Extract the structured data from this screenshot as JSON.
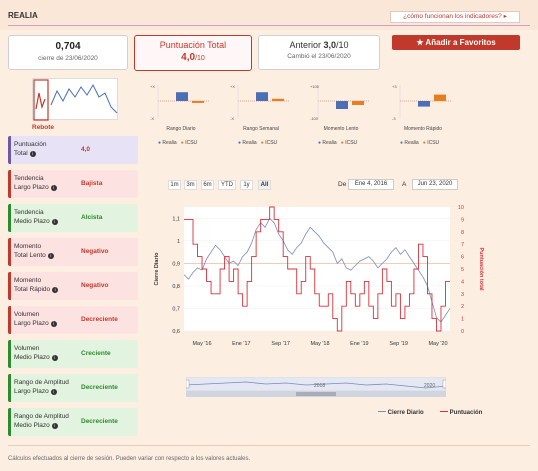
{
  "header": {
    "title": "REALIA",
    "help_link": "¿cómo funcionan los indicadores?"
  },
  "summary": {
    "close_value": "0,704",
    "close_date": "cierre de 23/06/2020",
    "score_label": "Puntuación Total",
    "score_value": "4,0",
    "score_max": "/10",
    "prev_label": "Anterior",
    "prev_value": "3,0",
    "prev_max": "/10",
    "prev_changed": "Cambió el 23/06/2020",
    "favorites_button": "Añadir a Favoritos"
  },
  "rebote_label": "Rebote",
  "mini_charts": [
    {
      "label": "Rango Diario",
      "top": "+X",
      "bottom": "-X",
      "realia": 0.55,
      "icsu": -0.12
    },
    {
      "label": "Rango Semanal",
      "top": "+X",
      "bottom": "-X",
      "realia": 0.55,
      "icsu": 0.14
    },
    {
      "label": "Momento Lento",
      "top": "+100",
      "bottom": "-100",
      "realia": -0.5,
      "icsu": -0.25
    },
    {
      "label": "Momento Rápido",
      "top": "+3",
      "bottom": "-3",
      "realia": -0.35,
      "icsu": 0.4
    }
  ],
  "mini_legend": {
    "realia": "Realia",
    "icsu": "ICSU"
  },
  "indicators": [
    {
      "name_line1": "Puntuación",
      "name_line2": "Total",
      "value": "4,0",
      "kind": "neu"
    },
    {
      "name_line1": "Tendencia",
      "name_line2": "Largo Plazo",
      "value": "Bajista",
      "kind": "neg"
    },
    {
      "name_line1": "Tendencia",
      "name_line2": "Medio Plazo",
      "value": "Alcista",
      "kind": "pos"
    },
    {
      "name_line1": "Momento",
      "name_line2": "Total Lento",
      "value": "Negativo",
      "kind": "neg"
    },
    {
      "name_line1": "Momento",
      "name_line2": "Total Rápido",
      "value": "Negativo",
      "kind": "neg"
    },
    {
      "name_line1": "Volumen",
      "name_line2": "Largo Plazo",
      "value": "Decreciente",
      "kind": "neg"
    },
    {
      "name_line1": "Volumen",
      "name_line2": "Medio Plazo",
      "value": "Creciente",
      "kind": "pos"
    },
    {
      "name_line1": "Rango de Amplitud",
      "name_line2": "Largo Plazo",
      "value": "Decreciente",
      "kind": "pos"
    },
    {
      "name_line1": "Rango de Amplitud",
      "name_line2": "Medio Plazo",
      "value": "Decreciente",
      "kind": "pos"
    }
  ],
  "range_buttons": [
    "1m",
    "3m",
    "6m",
    "YTD",
    "1y",
    "All"
  ],
  "date_range": {
    "from_label": "De",
    "from": "Ene 4, 2016",
    "to_label": "A",
    "to": "Jun 23, 2020"
  },
  "chart_data": {
    "type": "line",
    "x_ticks": [
      "May '16",
      "Ene '17",
      "Sep '17",
      "May '18",
      "Ene '19",
      "Sep '19",
      "May '20"
    ],
    "y_left_label": "Cierre Diario",
    "y_left_ticks": [
      "0,6",
      "0,7",
      "0,8",
      "0,9",
      "1",
      "1,1"
    ],
    "y_left_range": [
      0.6,
      1.15
    ],
    "y_right_label": "Puntuación total",
    "y_right_ticks": [
      "0",
      "1",
      "2",
      "3",
      "4",
      "5",
      "6",
      "7",
      "8",
      "9",
      "10"
    ],
    "y_right_range": [
      0,
      10
    ],
    "series": [
      {
        "name": "Cierre Diario",
        "color": "#7b8ab8",
        "values": [
          0.85,
          0.83,
          0.86,
          0.88,
          0.87,
          0.92,
          0.95,
          0.98,
          0.96,
          0.93,
          0.9,
          0.91,
          0.89,
          0.93,
          0.95,
          0.99,
          1.05,
          1.08,
          1.06,
          1.1,
          1.08,
          1.03,
          1.0,
          0.96,
          0.94,
          0.97,
          0.99,
          1.03,
          1.06,
          1.04,
          1.02,
          0.99,
          0.97,
          0.95,
          0.9,
          0.92,
          0.88,
          0.87,
          0.89,
          0.91,
          0.92,
          0.93,
          0.91,
          0.88,
          0.9,
          0.92,
          0.95,
          0.97,
          0.94,
          0.96,
          0.93,
          0.9,
          0.87,
          0.84,
          0.8,
          0.73,
          0.66,
          0.64,
          0.67,
          0.7
        ]
      },
      {
        "name": "Puntuación",
        "color": "#d9313a",
        "values": [
          9,
          9,
          7,
          6,
          5,
          4,
          3,
          3,
          5,
          6,
          4,
          5,
          3,
          2,
          4,
          6,
          8,
          9,
          9,
          10,
          9,
          8,
          6,
          5,
          5,
          3,
          4,
          6,
          5,
          3,
          2,
          2,
          3,
          1,
          0,
          2,
          4,
          3,
          2,
          3,
          4,
          2,
          1,
          3,
          5,
          4,
          2,
          3,
          1,
          2,
          3,
          5,
          7,
          6,
          3,
          1,
          0,
          2,
          4,
          4
        ]
      }
    ],
    "reference_line": 0.9
  },
  "main_legend": {
    "close": "Cierre Diario",
    "score": "Puntuación"
  },
  "navigator": {
    "labels": [
      "2018",
      "2020"
    ]
  },
  "footer": "Cálculos efectuados al cierre de sesión. Pueden variar con respecto a los valores actuales."
}
